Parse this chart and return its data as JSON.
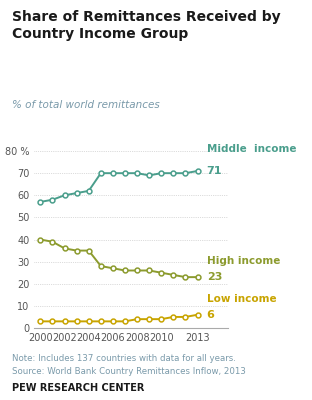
{
  "title": "Share of Remittances Received by\nCountry Income Group",
  "subtitle": "% of total world remittances",
  "years": [
    2000,
    2001,
    2002,
    2003,
    2004,
    2005,
    2006,
    2007,
    2008,
    2009,
    2010,
    2011,
    2012,
    2013
  ],
  "middle_income": [
    57,
    58,
    60,
    61,
    62,
    70,
    70,
    70,
    70,
    69,
    70,
    70,
    70,
    71
  ],
  "high_income": [
    40,
    39,
    36,
    35,
    35,
    28,
    27,
    26,
    26,
    26,
    25,
    24,
    23,
    23
  ],
  "low_income": [
    3,
    3,
    3,
    3,
    3,
    3,
    3,
    3,
    4,
    4,
    4,
    5,
    5,
    6
  ],
  "middle_color": "#4a9e8c",
  "high_color": "#8c9b2e",
  "low_color": "#c8a400",
  "label_middle": "Middle  income",
  "label_high": "High income",
  "label_low": "Low income",
  "end_label_middle": "71",
  "end_label_high": "23",
  "end_label_low": "6",
  "note": "Note: Includes 137 countries with data for all years.",
  "source": "Source: World Bank Country Remittances Inflow, 2013",
  "branding": "PEW RESEARCH CENTER",
  "ylim": [
    0,
    85
  ],
  "yticks": [
    0,
    10,
    20,
    30,
    40,
    50,
    60,
    70,
    80
  ],
  "xlim_left": 1999.5,
  "xlim_right": 2015.5,
  "xticks": [
    2000,
    2002,
    2004,
    2006,
    2008,
    2010,
    2013
  ],
  "title_color": "#1a1a1a",
  "subtitle_color": "#7a9aaa",
  "note_color": "#7a9aaa",
  "branding_color": "#1a1a1a",
  "bg_color": "#ffffff",
  "grid_color": "#bbbbbb"
}
